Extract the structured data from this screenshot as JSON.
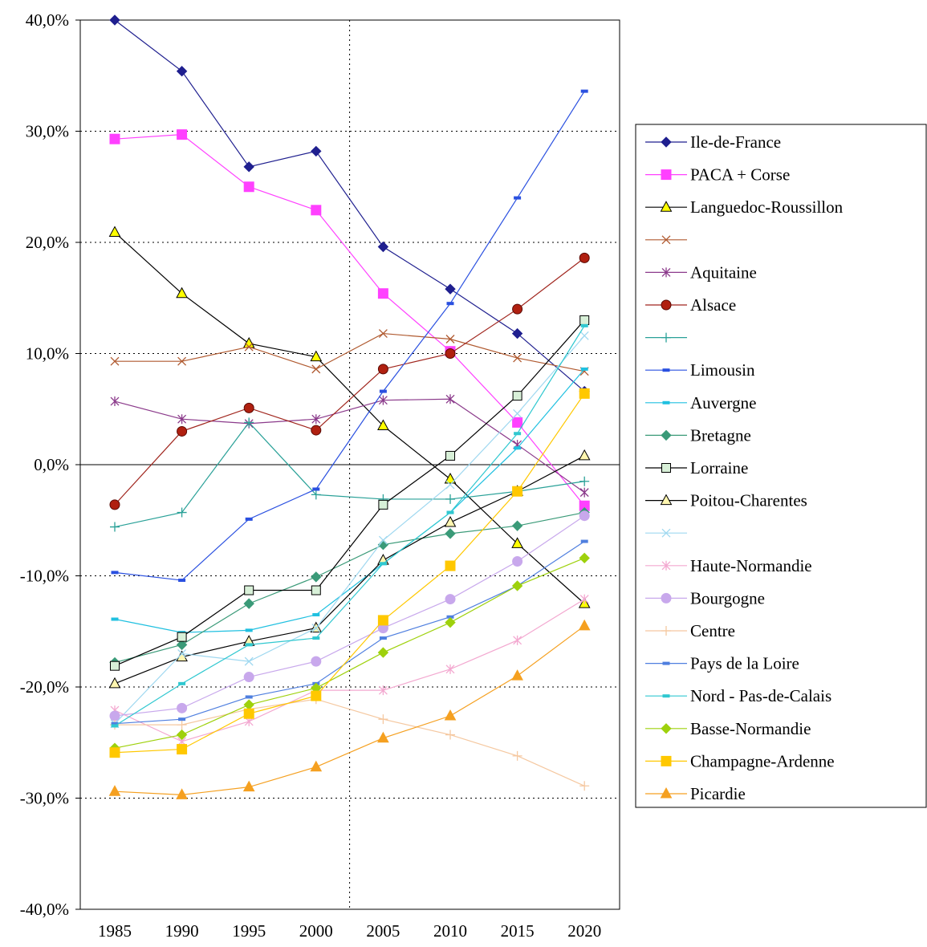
{
  "chart_data": {
    "type": "line",
    "title": "",
    "xlabel": "",
    "ylabel": "",
    "x": [
      "1985",
      "1990",
      "1995",
      "2000",
      "2005",
      "2010",
      "2015",
      "2020"
    ],
    "ylim": [
      -40,
      40
    ],
    "y_ticks": [
      "40,0%",
      "30,0%",
      "20,0%",
      "10,0%",
      "0,0%",
      "-10,0%",
      "-20,0%",
      "-30,0%",
      "-40,0%"
    ],
    "grid": "horizontal dotted at 10% intervals; one vertical dotted line between 2000 and 2005",
    "legend_position": "right",
    "series": [
      {
        "name": "Ile-de-France",
        "color": "#1f1f8f",
        "marker": "diamond",
        "values": [
          40.0,
          35.4,
          26.8,
          28.2,
          19.6,
          15.8,
          11.8,
          6.6
        ]
      },
      {
        "name": "PACA + Corse",
        "color": "#ff40ff",
        "marker": "square",
        "values": [
          29.3,
          29.7,
          25.0,
          22.9,
          15.4,
          10.2,
          3.8,
          -3.7
        ]
      },
      {
        "name": "Languedoc-Roussillon",
        "color": "#000000",
        "marker": "triangle-yellow",
        "values": [
          20.9,
          15.4,
          10.9,
          9.7,
          3.5,
          -1.3,
          -7.1,
          -12.5
        ]
      },
      {
        "name": "",
        "color": "#b05a30",
        "marker": "x",
        "values": [
          9.3,
          9.3,
          10.6,
          8.6,
          11.8,
          11.3,
          9.6,
          8.4
        ]
      },
      {
        "name": "Aquitaine",
        "color": "#8b3a8b",
        "marker": "asterisk",
        "values": [
          5.7,
          4.1,
          3.7,
          4.1,
          5.8,
          5.9,
          1.8,
          -2.5
        ]
      },
      {
        "name": "Alsace",
        "color": "#a0251d",
        "marker": "circle-dark",
        "values": [
          -3.6,
          3.0,
          5.1,
          3.1,
          8.6,
          10.0,
          14.0,
          18.6
        ]
      },
      {
        "name": "",
        "color": "#2aa198",
        "marker": "plus",
        "values": [
          -5.6,
          -4.3,
          3.8,
          -2.7,
          -3.1,
          -3.1,
          -2.4,
          -1.5
        ]
      },
      {
        "name": "Limousin",
        "color": "#2a50e0",
        "marker": "dash",
        "values": [
          -9.7,
          -10.4,
          -4.9,
          -2.2,
          6.6,
          14.5,
          24.0,
          33.6
        ]
      },
      {
        "name": "Auvergne",
        "color": "#20c0e0",
        "marker": "dash",
        "values": [
          -13.9,
          -15.1,
          -14.9,
          -13.5,
          -8.9,
          -4.3,
          1.5,
          8.6
        ]
      },
      {
        "name": "Bretagne",
        "color": "#3a9a78",
        "marker": "diamond",
        "values": [
          -17.8,
          -16.2,
          -12.5,
          -10.1,
          -7.2,
          -6.2,
          -5.5,
          -4.3
        ]
      },
      {
        "name": "Lorraine",
        "color": "#000000",
        "marker": "square-open",
        "values": [
          -18.1,
          -15.5,
          -11.3,
          -11.3,
          -3.6,
          0.8,
          6.2,
          13.0
        ]
      },
      {
        "name": "Poitou-Charentes",
        "color": "#000000",
        "marker": "triangle-cream",
        "values": [
          -19.7,
          -17.3,
          -15.9,
          -14.7,
          -8.6,
          -5.2,
          -2.4,
          0.8
        ]
      },
      {
        "name": "",
        "color": "#9fd8f0",
        "marker": "x",
        "values": [
          -23.3,
          -17.0,
          -17.7,
          -14.7,
          -6.8,
          -1.8,
          4.6,
          11.6
        ]
      },
      {
        "name": "Haute-Normandie",
        "color": "#f3a8d0",
        "marker": "asterisk",
        "values": [
          -22.1,
          -24.9,
          -23.1,
          -20.3,
          -20.3,
          -18.4,
          -15.8,
          -12.1
        ]
      },
      {
        "name": "Bourgogne",
        "color": "#c8a8ec",
        "marker": "circle",
        "values": [
          -22.6,
          -21.9,
          -19.1,
          -17.7,
          -14.7,
          -12.1,
          -8.7,
          -4.6
        ]
      },
      {
        "name": "Centre",
        "color": "#f5c8a0",
        "marker": "plus",
        "values": [
          -23.4,
          -23.4,
          -22.0,
          -21.1,
          -22.9,
          -24.3,
          -26.2,
          -28.9
        ]
      },
      {
        "name": "Pays de la Loire",
        "color": "#4f7fdf",
        "marker": "dash",
        "values": [
          -23.3,
          -22.9,
          -20.9,
          -19.7,
          -15.6,
          -13.7,
          -10.9,
          -6.9
        ]
      },
      {
        "name": "Nord - Pas-de-Calais",
        "color": "#30c8d0",
        "marker": "dash",
        "values": [
          -23.5,
          -19.7,
          -16.2,
          -15.6,
          -8.9,
          -4.3,
          2.8,
          12.5
        ]
      },
      {
        "name": "Basse-Normandie",
        "color": "#9ed10c",
        "marker": "diamond",
        "values": [
          -25.5,
          -24.3,
          -21.6,
          -20.1,
          -16.9,
          -14.2,
          -10.9,
          -8.4
        ]
      },
      {
        "name": "Champagne-Ardenne",
        "color": "#ffc800",
        "marker": "square",
        "values": [
          -25.9,
          -25.6,
          -22.4,
          -20.8,
          -14.0,
          -9.1,
          -2.4,
          6.4
        ]
      },
      {
        "name": "Picardie",
        "color": "#f5a020",
        "marker": "triangle",
        "values": [
          -29.4,
          -29.7,
          -29.0,
          -27.2,
          -24.6,
          -22.6,
          -19.0,
          -14.5
        ]
      }
    ]
  }
}
